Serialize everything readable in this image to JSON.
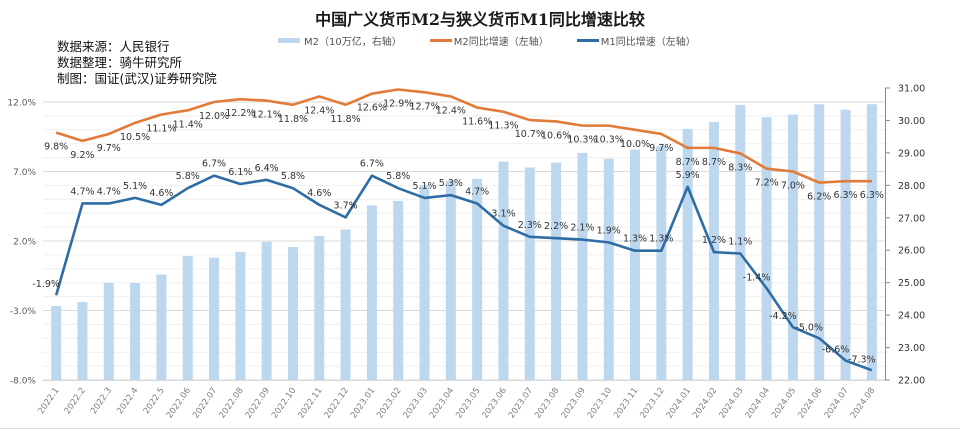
{
  "header": {
    "title": "中国广义货币M2与狭义货币M1同比增速比较",
    "notes": [
      "数据来源：人民银行",
      "数据整理：骑牛研究所",
      "制图：国证(武汉)证券研究院"
    ]
  },
  "legend": [
    {
      "label": "M2（10万亿，右轴）",
      "type": "bar",
      "color": "#bdd7ee"
    },
    {
      "label": "M2同比增速（左轴）",
      "type": "line",
      "color": "#e07b39"
    },
    {
      "label": "M1同比增速（左轴）",
      "type": "line",
      "color": "#2e6da4"
    }
  ],
  "chart_data": {
    "type": "bar+line",
    "title": "中国广义货币M2与狭义货币M1同比增速比较",
    "categories": [
      "2022.1",
      "2022.2",
      "2022.3",
      "2022.4",
      "2022.5",
      "2022.06",
      "2022.07",
      "2022.08",
      "2022.09",
      "2022.10",
      "2022.11",
      "2022.12",
      "2023.01",
      "2023.02",
      "2023.03",
      "2023.04",
      "2023.05",
      "2023.06",
      "2023.07",
      "2023.08",
      "2023.09",
      "2023.10",
      "2023.11",
      "2023.12",
      "2024.01",
      "2024.02",
      "2024.03",
      "2024.04",
      "2024.05",
      "2024.06",
      "2024.07",
      "2024.08"
    ],
    "left_axis": {
      "min": -8.0,
      "max": 12.0,
      "ticks": [
        "12.0%",
        "7.0%",
        "2.0%",
        "-3.0%",
        "-8.0%"
      ],
      "tick_values": [
        12,
        7,
        2,
        -3,
        -8
      ]
    },
    "right_axis": {
      "min": 22.0,
      "max": 31.0,
      "ticks": [
        "31.00",
        "30.00",
        "29.00",
        "28.00",
        "27.00",
        "26.00",
        "25.00",
        "24.00",
        "23.00",
        "22.00"
      ],
      "tick_values": [
        31,
        30,
        29,
        28,
        27,
        26,
        25,
        24,
        23,
        22
      ]
    },
    "grid": true,
    "legend_position": "top",
    "series": [
      {
        "name": "M2（10万亿，右轴）",
        "type": "bar",
        "axis": "right",
        "color": "#bdd7ee",
        "values": [
          24.28,
          24.4,
          24.99,
          24.99,
          25.25,
          25.82,
          25.77,
          25.95,
          26.26,
          26.1,
          26.44,
          26.64,
          27.38,
          27.52,
          28.0,
          28.15,
          28.2,
          28.73,
          28.55,
          28.7,
          29.0,
          28.82,
          29.1,
          29.22,
          29.74,
          29.95,
          30.48,
          30.1,
          30.18,
          30.5,
          30.33,
          30.5
        ]
      },
      {
        "name": "M2同比增速（左轴）",
        "type": "line",
        "axis": "left",
        "color": "#e07b39",
        "values": [
          9.8,
          9.2,
          9.7,
          10.5,
          11.1,
          11.4,
          12.0,
          12.2,
          12.1,
          11.8,
          12.4,
          11.8,
          12.6,
          12.9,
          12.7,
          12.4,
          11.6,
          11.3,
          10.7,
          10.6,
          10.3,
          10.3,
          10.0,
          9.7,
          8.7,
          8.7,
          8.3,
          7.2,
          7.0,
          6.2,
          6.3,
          6.3
        ],
        "labels": [
          "9.8%",
          "9.2%",
          "9.7%",
          "10.5%",
          "11.1%",
          "11.4%",
          "12.0%",
          "12.2%",
          "12.1%",
          "11.8%",
          "12.4%",
          "11.8%",
          "12.6%",
          "12.9%",
          "12.7%",
          "12.4%",
          "11.6%",
          "11.3%",
          "10.7%",
          "10.6%",
          "10.3%",
          "10.3%",
          "10.0%",
          "9.7%",
          "8.7%",
          "8.7%",
          "8.3%",
          "7.2%",
          "7.0%",
          "6.2%",
          "6.3%",
          "6.3%"
        ]
      },
      {
        "name": "M1同比增速（左轴）",
        "type": "line",
        "axis": "left",
        "color": "#2e6da4",
        "values": [
          -1.9,
          4.7,
          4.7,
          5.1,
          4.6,
          5.8,
          6.7,
          6.1,
          6.4,
          5.8,
          4.6,
          3.7,
          6.7,
          5.8,
          5.1,
          5.3,
          4.7,
          3.1,
          2.3,
          2.2,
          2.1,
          1.9,
          1.3,
          1.3,
          5.9,
          1.2,
          1.1,
          -1.4,
          -4.2,
          -5.0,
          -6.6,
          -7.3
        ],
        "labels": [
          "-1.9%",
          "4.7%",
          "4.7%",
          "5.1%",
          "4.6%",
          "5.8%",
          "6.7%",
          "6.1%",
          "6.4%",
          "5.8%",
          "4.6%",
          "3.7%",
          "6.7%",
          "5.8%",
          "5.1%",
          "5.3%",
          "4.7%",
          "3.1%",
          "2.3%",
          "2.2%",
          "2.1%",
          "1.9%",
          "1.3%",
          "1.3%",
          "5.9%",
          "1.2%",
          "1.1%",
          "-1.4%",
          "-4.2%",
          "-5.0%",
          "-6.6%",
          "-7.3%"
        ]
      }
    ]
  }
}
